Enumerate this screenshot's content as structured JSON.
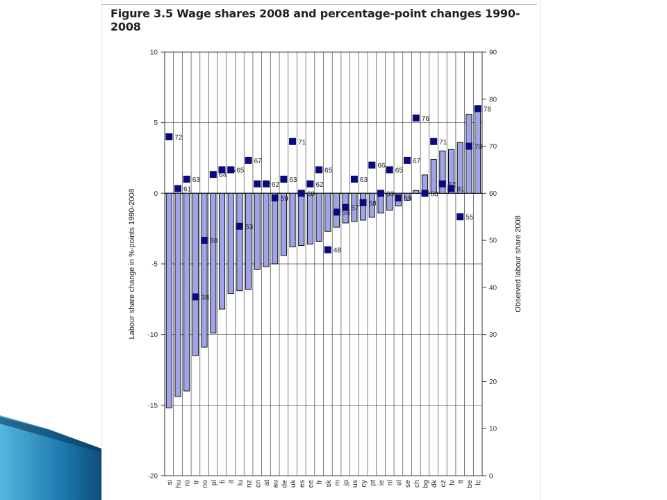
{
  "slide": {
    "accent_color": "#1e7bb0"
  },
  "figure": {
    "title": "Figure 3.5 Wage shares 2008 and percentage-point changes 1990-2008"
  },
  "chart_data": {
    "type": "bar",
    "title": "Figure 3.5 Wage shares 2008 and percentage-point changes 1990-2008",
    "categories": [
      "si",
      "hu",
      "ro",
      "tr",
      "no",
      "pl",
      "fi",
      "it",
      "lu",
      "nz",
      "cn",
      "at",
      "au",
      "de",
      "uk",
      "es",
      "ee",
      "fr",
      "sk",
      "m",
      "jp",
      "us",
      "cy",
      "pt",
      "ie",
      "nl",
      "el",
      "se",
      "ch",
      "bg",
      "dk",
      "cz",
      "lv",
      "lt",
      "be",
      "lc"
    ],
    "series": [
      {
        "name": "Labour share change in %-points 1990-2008",
        "axis": "left",
        "kind": "bar",
        "color": "#9fa3e8",
        "values": [
          -15.2,
          -14.4,
          -14.0,
          -11.5,
          -10.9,
          -9.9,
          -8.2,
          -7.1,
          -6.9,
          -6.8,
          -5.4,
          -5.2,
          -5.0,
          -4.4,
          -3.8,
          -3.7,
          -3.6,
          -3.4,
          -2.7,
          -2.4,
          -2.1,
          -2.0,
          -1.9,
          -1.7,
          -1.4,
          -1.2,
          -0.9,
          -0.5,
          0.2,
          1.3,
          2.4,
          3.0,
          3.1,
          3.6,
          5.6,
          6.2
        ]
      },
      {
        "name": "Observed labour share 2008",
        "axis": "right",
        "kind": "marker",
        "color": "#0a0a7a",
        "values": [
          72,
          61,
          63,
          38,
          50,
          64,
          65,
          65,
          53,
          67,
          62,
          62,
          59,
          63,
          71,
          60,
          62,
          65,
          48,
          56,
          57,
          63,
          58,
          66,
          60,
          65,
          59,
          67,
          76,
          60,
          71,
          62,
          61,
          55,
          70,
          78
        ],
        "labels": [
          "72",
          "61",
          "63",
          "38",
          "50",
          "64",
          "65",
          "65",
          "53",
          "67",
          "62",
          "62",
          "59",
          "63",
          "71",
          "60",
          "62",
          "65",
          "48",
          "56",
          "57",
          "63",
          "58",
          "66",
          "60",
          "65",
          "59",
          "67",
          "76",
          "60",
          "71",
          "62",
          "61",
          "55",
          "70",
          "78"
        ]
      }
    ],
    "ylabel": "Labour share change in %-points 1990-2008",
    "y2label": "Observed labour share 2008",
    "ylim": [
      -20,
      10
    ],
    "y2lim": [
      0,
      90
    ],
    "yticks": [
      "10",
      "5",
      "0",
      "-5",
      "-10",
      "-15",
      "-20"
    ],
    "y2ticks": [
      "90",
      "80",
      "70",
      "60",
      "50",
      "40",
      "30",
      "20",
      "10",
      "0"
    ],
    "grid": true
  }
}
